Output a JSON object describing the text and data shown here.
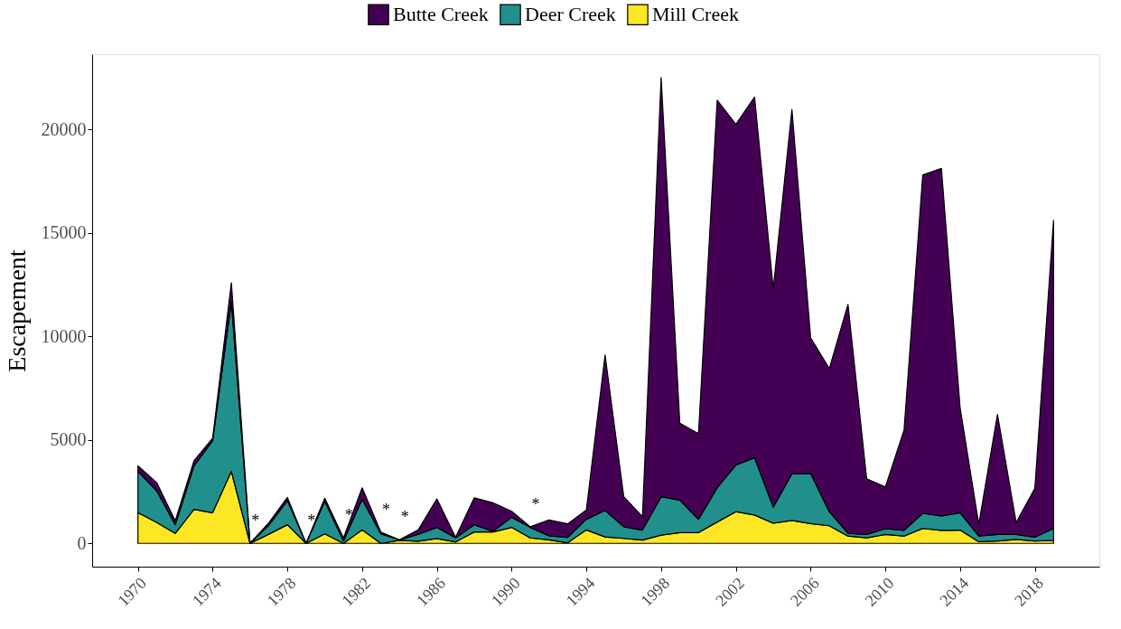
{
  "chart_data": {
    "type": "area",
    "stacked": true,
    "ylabel": "Escapement",
    "legend": "top",
    "x": [
      1970,
      1971,
      1972,
      1973,
      1974,
      1975,
      1976,
      1977,
      1978,
      1979,
      1980,
      1981,
      1982,
      1983,
      1984,
      1985,
      1986,
      1987,
      1988,
      1989,
      1990,
      1991,
      1992,
      1993,
      1994,
      1995,
      1996,
      1997,
      1998,
      1999,
      2000,
      2001,
      2002,
      2003,
      2004,
      2005,
      2006,
      2007,
      2008,
      2009,
      2010,
      2011,
      2012,
      2013,
      2014,
      2015,
      2016,
      2017,
      2018,
      2019
    ],
    "series": [
      {
        "name": "Mill Creek",
        "color": "#fde725",
        "values": [
          1480,
          1010,
          480,
          1640,
          1480,
          3480,
          0,
          440,
          900,
          0,
          460,
          0,
          650,
          0,
          150,
          100,
          230,
          70,
          550,
          550,
          770,
          260,
          170,
          30,
          650,
          310,
          240,
          160,
          400,
          520,
          520,
          1030,
          1530,
          1370,
          970,
          1110,
          950,
          850,
          350,
          270,
          430,
          350,
          720,
          630,
          640,
          80,
          110,
          190,
          110,
          150
        ]
      },
      {
        "name": "Deer Creek",
        "color": "#21908d",
        "values": [
          2000,
          1530,
          420,
          2100,
          3480,
          8190,
          0,
          430,
          1170,
          0,
          1570,
          120,
          1480,
          460,
          20,
          340,
          540,
          190,
          350,
          30,
          490,
          510,
          190,
          260,
          510,
          1280,
          560,
          480,
          1850,
          1570,
          640,
          1660,
          2250,
          2770,
          780,
          2250,
          2430,
          680,
          130,
          160,
          280,
          280,
          730,
          690,
          840,
          270,
          320,
          240,
          190,
          570
        ]
      },
      {
        "name": "Butte Creek",
        "color": "#440154",
        "values": [
          260,
          400,
          190,
          250,
          120,
          920,
          0,
          120,
          150,
          0,
          150,
          140,
          550,
          80,
          0,
          210,
          1380,
          30,
          1300,
          1380,
          290,
          30,
          770,
          650,
          460,
          7510,
          1450,
          650,
          20250,
          3710,
          4140,
          18710,
          16460,
          17420,
          10550,
          17600,
          6550,
          6910,
          11060,
          2690,
          2010,
          4840,
          16340,
          16790,
          5070,
          570,
          5800,
          570,
          2360,
          14880
        ]
      }
    ],
    "xlim": [
      1967.55,
      2021.45
    ],
    "xticks": [
      1970,
      1974,
      1978,
      1982,
      1986,
      1990,
      1994,
      1998,
      2002,
      2006,
      2010,
      2014,
      2018
    ],
    "ylim": [
      -1125,
      23625
    ],
    "yticks": [
      0,
      5000,
      10000,
      15000,
      20000
    ],
    "grid": false,
    "annotations": [
      {
        "text": "*",
        "x": 1976,
        "y": 0
      },
      {
        "text": "*",
        "x": 1979,
        "y": 0
      },
      {
        "text": "*",
        "x": 1981,
        "y": 260
      },
      {
        "text": "*",
        "x": 1983,
        "y": 540
      },
      {
        "text": "*",
        "x": 1984,
        "y": 170
      },
      {
        "text": "*",
        "x": 1991,
        "y": 800
      }
    ]
  }
}
